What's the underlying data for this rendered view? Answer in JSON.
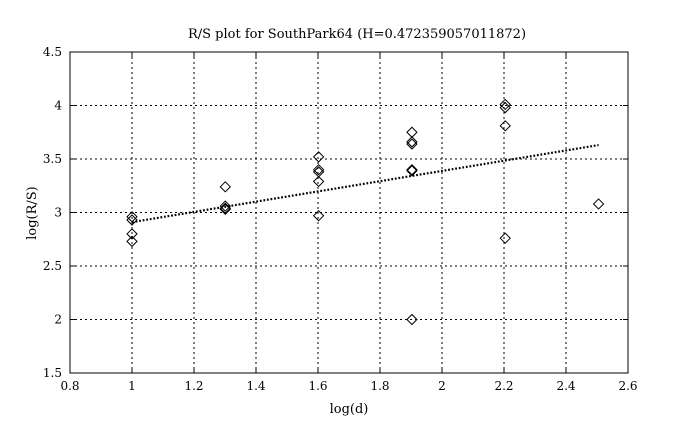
{
  "chart_data": {
    "type": "scatter",
    "title": "R/S plot for SouthPark64 (H=0.472359057011872)",
    "xlabel": "log(d)",
    "ylabel": "log(R/S)",
    "xlim": [
      0.8,
      2.6
    ],
    "ylim": [
      1.5,
      4.5
    ],
    "xticks": [
      0.8,
      1,
      1.2,
      1.4,
      1.6,
      1.8,
      2,
      2.2,
      2.4,
      2.6
    ],
    "yticks": [
      1.5,
      2,
      2.5,
      3,
      3.5,
      4,
      4.5
    ],
    "xtick_labels": [
      "0.8",
      "1",
      "1.2",
      "1.4",
      "1.6",
      "1.8",
      "2",
      "2.2",
      "2.4",
      "2.6"
    ],
    "ytick_labels": [
      "1.5",
      "2",
      "2.5",
      "3",
      "3.5",
      "4",
      "4.5"
    ],
    "grid": true,
    "marker": "diamond",
    "points": [
      {
        "x": 1.0,
        "y": 2.96
      },
      {
        "x": 1.0,
        "y": 2.93
      },
      {
        "x": 1.0,
        "y": 2.8
      },
      {
        "x": 1.0,
        "y": 2.73
      },
      {
        "x": 1.301,
        "y": 3.24
      },
      {
        "x": 1.301,
        "y": 3.06
      },
      {
        "x": 1.301,
        "y": 3.04
      },
      {
        "x": 1.301,
        "y": 3.03
      },
      {
        "x": 1.602,
        "y": 3.52
      },
      {
        "x": 1.602,
        "y": 3.4
      },
      {
        "x": 1.602,
        "y": 3.38
      },
      {
        "x": 1.602,
        "y": 3.29
      },
      {
        "x": 1.602,
        "y": 2.97
      },
      {
        "x": 1.903,
        "y": 3.75
      },
      {
        "x": 1.903,
        "y": 3.66
      },
      {
        "x": 1.903,
        "y": 3.64
      },
      {
        "x": 1.903,
        "y": 3.4
      },
      {
        "x": 1.903,
        "y": 3.39
      },
      {
        "x": 1.903,
        "y": 2.0
      },
      {
        "x": 2.204,
        "y": 4.01
      },
      {
        "x": 2.204,
        "y": 3.98
      },
      {
        "x": 2.204,
        "y": 3.81
      },
      {
        "x": 2.204,
        "y": 2.76
      },
      {
        "x": 2.505,
        "y": 3.08
      }
    ],
    "fit_line": {
      "style": "dotted",
      "x": [
        1.0,
        2.505
      ],
      "y": [
        2.91,
        3.63
      ]
    }
  }
}
